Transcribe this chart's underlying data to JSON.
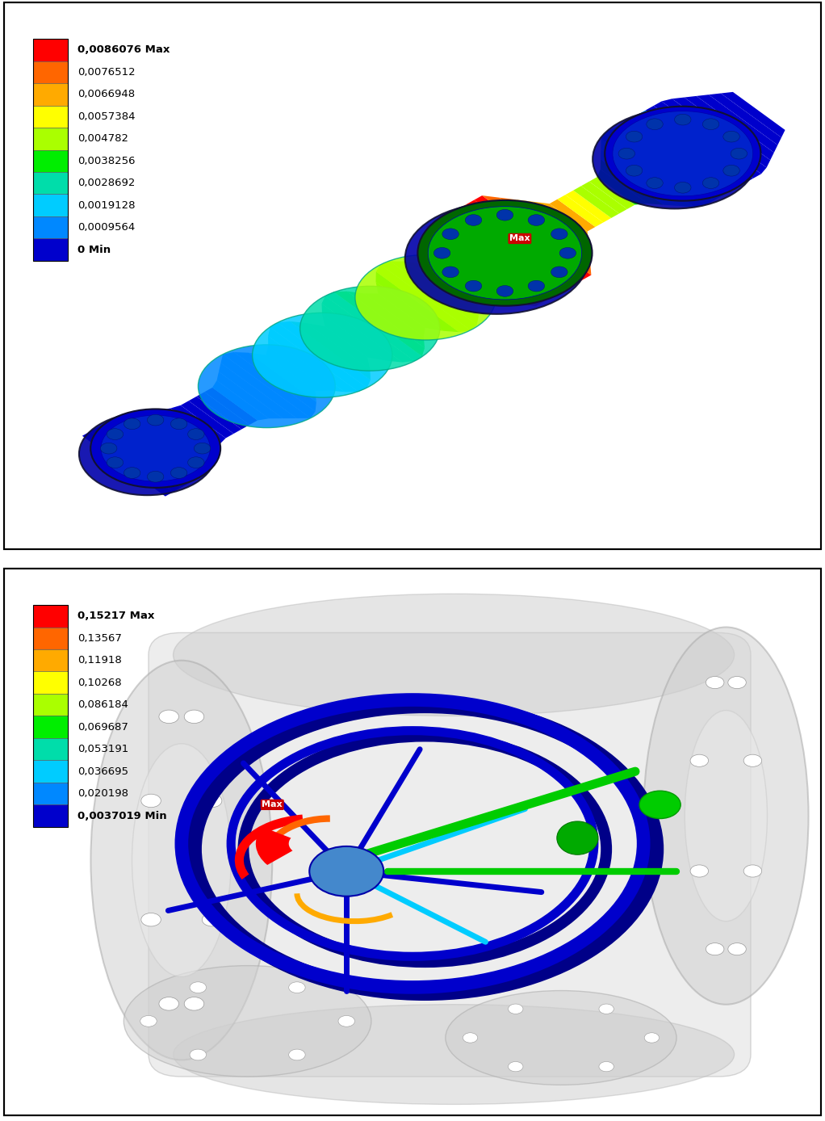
{
  "panel1": {
    "colorbar_labels": [
      "0,0086076 Max",
      "0,0076512",
      "0,0066948",
      "0,0057384",
      "0,004782",
      "0,0038256",
      "0,0028692",
      "0,0019128",
      "0,0009564",
      "0 Min"
    ],
    "max_bold": true,
    "min_bold": true
  },
  "panel2": {
    "colorbar_labels": [
      "0,15217 Max",
      "0,13567",
      "0,11918",
      "0,10268",
      "0,086184",
      "0,069687",
      "0,053191",
      "0,036695",
      "0,020198",
      "0,0037019 Min"
    ],
    "max_bold": true,
    "min_bold": true
  },
  "colors": [
    "#ff0000",
    "#ff6600",
    "#ffaa00",
    "#ffff00",
    "#aaff00",
    "#00ee00",
    "#00ddaa",
    "#00ccff",
    "#0088ff",
    "#0000cc"
  ],
  "background_color": "#ffffff",
  "label_fontsize": 9.5
}
